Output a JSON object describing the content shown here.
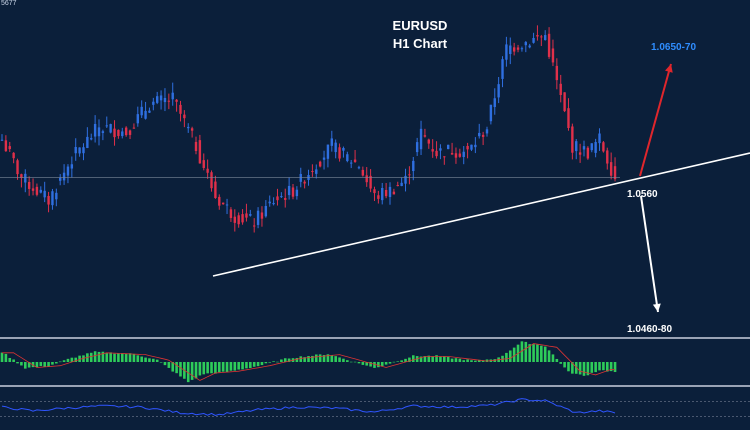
{
  "header": {
    "corner_label": "5677",
    "title_line1": "EURUSD",
    "title_line2": "H1 Chart"
  },
  "annotations": {
    "bull_target": "1.0650-70",
    "pivot": "1.0560",
    "bear_target": "1.0460-80"
  },
  "colors": {
    "background": "#0b1f3a",
    "bull_candle": "#2f6fe0",
    "bear_candle": "#e0304a",
    "trendline": "#ffffff",
    "bull_arrow": "#e0262c",
    "bear_arrow": "#ffffff",
    "bull_target_text": "#2f8dff",
    "osc_bar": "#2ecc5a",
    "rsi_line": "#2f55ff",
    "panel_divider": "#9aa3b5"
  },
  "chart_data": {
    "type": "candlestick",
    "symbol": "EURUSD",
    "timeframe": "H1",
    "ylim": [
      1.044,
      1.07
    ],
    "price_anchors": [
      {
        "i": 0,
        "p": 1.059
      },
      {
        "i": 5,
        "p": 1.056
      },
      {
        "i": 12,
        "p": 1.0542
      },
      {
        "i": 18,
        "p": 1.0575
      },
      {
        "i": 25,
        "p": 1.06
      },
      {
        "i": 32,
        "p": 1.0596
      },
      {
        "i": 38,
        "p": 1.0618
      },
      {
        "i": 44,
        "p": 1.0622
      },
      {
        "i": 50,
        "p": 1.0585
      },
      {
        "i": 55,
        "p": 1.0545
      },
      {
        "i": 60,
        "p": 1.053
      },
      {
        "i": 65,
        "p": 1.0525
      },
      {
        "i": 70,
        "p": 1.0542
      },
      {
        "i": 75,
        "p": 1.055
      },
      {
        "i": 80,
        "p": 1.0568
      },
      {
        "i": 85,
        "p": 1.0585
      },
      {
        "i": 88,
        "p": 1.0578
      },
      {
        "i": 92,
        "p": 1.057
      },
      {
        "i": 96,
        "p": 1.0545
      },
      {
        "i": 100,
        "p": 1.055
      },
      {
        "i": 104,
        "p": 1.0558
      },
      {
        "i": 108,
        "p": 1.0595
      },
      {
        "i": 112,
        "p": 1.058
      },
      {
        "i": 116,
        "p": 1.0582
      },
      {
        "i": 120,
        "p": 1.058
      },
      {
        "i": 125,
        "p": 1.06
      },
      {
        "i": 130,
        "p": 1.0662
      },
      {
        "i": 136,
        "p": 1.0668
      },
      {
        "i": 140,
        "p": 1.0672
      },
      {
        "i": 143,
        "p": 1.0635
      },
      {
        "i": 147,
        "p": 1.0585
      },
      {
        "i": 151,
        "p": 1.058
      },
      {
        "i": 154,
        "p": 1.059
      },
      {
        "i": 158,
        "p": 1.056
      }
    ],
    "candle_count": 159,
    "horizontal_level": 1.056,
    "trendline": [
      {
        "i": 53,
        "p": 1.052
      },
      {
        "i": 186,
        "p": 1.058
      }
    ],
    "scenarios": [
      {
        "direction": "up",
        "target": "1.0650-70",
        "from": 1.056
      },
      {
        "direction": "down",
        "target": "1.0460-80",
        "from": 1.056
      }
    ],
    "oscillator_anchors": [
      {
        "i": 0,
        "v": 0.5
      },
      {
        "i": 6,
        "v": -0.3
      },
      {
        "i": 12,
        "v": -0.2
      },
      {
        "i": 18,
        "v": 0.2
      },
      {
        "i": 24,
        "v": 0.5
      },
      {
        "i": 34,
        "v": 0.4
      },
      {
        "i": 40,
        "v": 0.1
      },
      {
        "i": 48,
        "v": -1.0
      },
      {
        "i": 52,
        "v": -0.6
      },
      {
        "i": 58,
        "v": -0.5
      },
      {
        "i": 66,
        "v": -0.2
      },
      {
        "i": 74,
        "v": 0.2
      },
      {
        "i": 84,
        "v": 0.4
      },
      {
        "i": 96,
        "v": -0.3
      },
      {
        "i": 106,
        "v": 0.3
      },
      {
        "i": 112,
        "v": 0.3
      },
      {
        "i": 122,
        "v": 0.05
      },
      {
        "i": 128,
        "v": 0.2
      },
      {
        "i": 134,
        "v": 1.0
      },
      {
        "i": 140,
        "v": 0.8
      },
      {
        "i": 146,
        "v": -0.5
      },
      {
        "i": 150,
        "v": -0.7
      },
      {
        "i": 154,
        "v": -0.4
      },
      {
        "i": 158,
        "v": -0.5
      }
    ],
    "rsi_anchors": [
      {
        "i": 0,
        "v": 55
      },
      {
        "i": 8,
        "v": 45
      },
      {
        "i": 16,
        "v": 52
      },
      {
        "i": 26,
        "v": 58
      },
      {
        "i": 36,
        "v": 55
      },
      {
        "i": 46,
        "v": 40
      },
      {
        "i": 56,
        "v": 35
      },
      {
        "i": 66,
        "v": 48
      },
      {
        "i": 76,
        "v": 55
      },
      {
        "i": 86,
        "v": 52
      },
      {
        "i": 96,
        "v": 42
      },
      {
        "i": 106,
        "v": 58
      },
      {
        "i": 116,
        "v": 55
      },
      {
        "i": 126,
        "v": 60
      },
      {
        "i": 134,
        "v": 75
      },
      {
        "i": 140,
        "v": 72
      },
      {
        "i": 148,
        "v": 40
      },
      {
        "i": 154,
        "v": 45
      },
      {
        "i": 158,
        "v": 40
      }
    ]
  }
}
